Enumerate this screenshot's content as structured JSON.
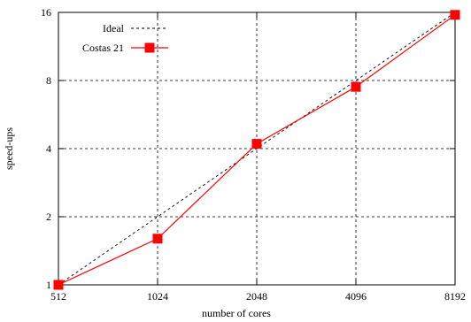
{
  "chart_data": {
    "type": "line",
    "title": "",
    "xlabel": "number of cores",
    "ylabel": "speed-ups",
    "x_scale": "log2",
    "y_scale": "log2",
    "xlim": [
      512,
      8192
    ],
    "ylim": [
      1,
      16
    ],
    "x_ticks": [
      "512",
      "1024",
      "2048",
      "4096",
      "8192"
    ],
    "y_ticks": [
      "1",
      "2",
      "4",
      "8",
      "16"
    ],
    "grid": true,
    "legend_position": "top-left",
    "x": [
      512,
      1024,
      2048,
      4096,
      8192
    ],
    "series": [
      {
        "name": "Ideal",
        "values": [
          1,
          2,
          4,
          8,
          16
        ],
        "color": "#000000",
        "style": "dashed",
        "marker": "none"
      },
      {
        "name": "Costas 21",
        "values": [
          1,
          1.6,
          4.2,
          7.5,
          15.6
        ],
        "color": "#ff0000",
        "style": "solid",
        "marker": "square"
      }
    ]
  }
}
